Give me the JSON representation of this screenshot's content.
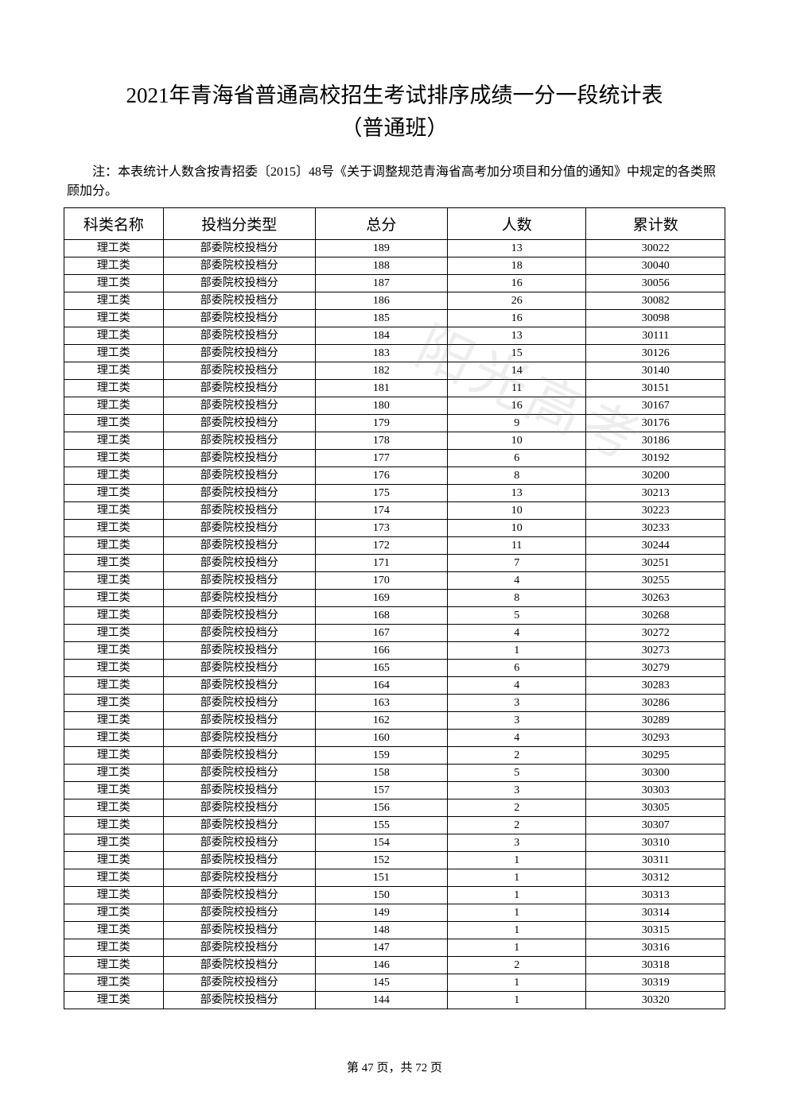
{
  "title_line1": "2021年青海省普通高校招生考试排序成绩一分一段统计表",
  "title_line2": "（普通班）",
  "note": "注：本表统计人数含按青招委〔2015〕48号《关于调整规范青海省高考加分项目和分值的通知》中规定的各类照顾加分。",
  "watermark_text": "阳光高考",
  "table": {
    "columns": [
      "科类名称",
      "投档分类型",
      "总分",
      "人数",
      "累计数"
    ],
    "header_fontsize": 19,
    "cell_fontsize": 14,
    "border_color": "#000000",
    "background_color": "#ffffff",
    "column_widths_pct": [
      15,
      23,
      20,
      21,
      21
    ],
    "rows": [
      [
        "理工类",
        "部委院校投档分",
        "189",
        "13",
        "30022"
      ],
      [
        "理工类",
        "部委院校投档分",
        "188",
        "18",
        "30040"
      ],
      [
        "理工类",
        "部委院校投档分",
        "187",
        "16",
        "30056"
      ],
      [
        "理工类",
        "部委院校投档分",
        "186",
        "26",
        "30082"
      ],
      [
        "理工类",
        "部委院校投档分",
        "185",
        "16",
        "30098"
      ],
      [
        "理工类",
        "部委院校投档分",
        "184",
        "13",
        "30111"
      ],
      [
        "理工类",
        "部委院校投档分",
        "183",
        "15",
        "30126"
      ],
      [
        "理工类",
        "部委院校投档分",
        "182",
        "14",
        "30140"
      ],
      [
        "理工类",
        "部委院校投档分",
        "181",
        "11",
        "30151"
      ],
      [
        "理工类",
        "部委院校投档分",
        "180",
        "16",
        "30167"
      ],
      [
        "理工类",
        "部委院校投档分",
        "179",
        "9",
        "30176"
      ],
      [
        "理工类",
        "部委院校投档分",
        "178",
        "10",
        "30186"
      ],
      [
        "理工类",
        "部委院校投档分",
        "177",
        "6",
        "30192"
      ],
      [
        "理工类",
        "部委院校投档分",
        "176",
        "8",
        "30200"
      ],
      [
        "理工类",
        "部委院校投档分",
        "175",
        "13",
        "30213"
      ],
      [
        "理工类",
        "部委院校投档分",
        "174",
        "10",
        "30223"
      ],
      [
        "理工类",
        "部委院校投档分",
        "173",
        "10",
        "30233"
      ],
      [
        "理工类",
        "部委院校投档分",
        "172",
        "11",
        "30244"
      ],
      [
        "理工类",
        "部委院校投档分",
        "171",
        "7",
        "30251"
      ],
      [
        "理工类",
        "部委院校投档分",
        "170",
        "4",
        "30255"
      ],
      [
        "理工类",
        "部委院校投档分",
        "169",
        "8",
        "30263"
      ],
      [
        "理工类",
        "部委院校投档分",
        "168",
        "5",
        "30268"
      ],
      [
        "理工类",
        "部委院校投档分",
        "167",
        "4",
        "30272"
      ],
      [
        "理工类",
        "部委院校投档分",
        "166",
        "1",
        "30273"
      ],
      [
        "理工类",
        "部委院校投档分",
        "165",
        "6",
        "30279"
      ],
      [
        "理工类",
        "部委院校投档分",
        "164",
        "4",
        "30283"
      ],
      [
        "理工类",
        "部委院校投档分",
        "163",
        "3",
        "30286"
      ],
      [
        "理工类",
        "部委院校投档分",
        "162",
        "3",
        "30289"
      ],
      [
        "理工类",
        "部委院校投档分",
        "160",
        "4",
        "30293"
      ],
      [
        "理工类",
        "部委院校投档分",
        "159",
        "2",
        "30295"
      ],
      [
        "理工类",
        "部委院校投档分",
        "158",
        "5",
        "30300"
      ],
      [
        "理工类",
        "部委院校投档分",
        "157",
        "3",
        "30303"
      ],
      [
        "理工类",
        "部委院校投档分",
        "156",
        "2",
        "30305"
      ],
      [
        "理工类",
        "部委院校投档分",
        "155",
        "2",
        "30307"
      ],
      [
        "理工类",
        "部委院校投档分",
        "154",
        "3",
        "30310"
      ],
      [
        "理工类",
        "部委院校投档分",
        "152",
        "1",
        "30311"
      ],
      [
        "理工类",
        "部委院校投档分",
        "151",
        "1",
        "30312"
      ],
      [
        "理工类",
        "部委院校投档分",
        "150",
        "1",
        "30313"
      ],
      [
        "理工类",
        "部委院校投档分",
        "149",
        "1",
        "30314"
      ],
      [
        "理工类",
        "部委院校投档分",
        "148",
        "1",
        "30315"
      ],
      [
        "理工类",
        "部委院校投档分",
        "147",
        "1",
        "30316"
      ],
      [
        "理工类",
        "部委院校投档分",
        "146",
        "2",
        "30318"
      ],
      [
        "理工类",
        "部委院校投档分",
        "145",
        "1",
        "30319"
      ],
      [
        "理工类",
        "部委院校投档分",
        "144",
        "1",
        "30320"
      ]
    ]
  },
  "pager": {
    "current": 47,
    "total": 72,
    "prefix": "第 ",
    "mid": " 页，共 ",
    "suffix": " 页"
  }
}
